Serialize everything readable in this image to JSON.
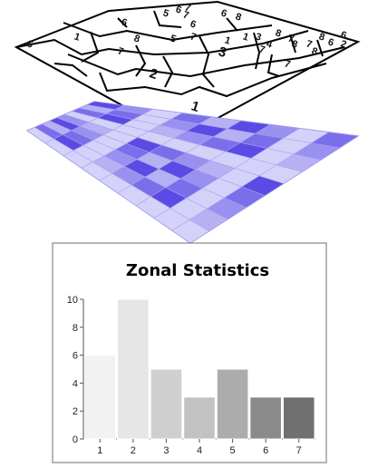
{
  "zone_map": {
    "zone_labels": [
      "1",
      "2",
      "3",
      "5",
      "6",
      "7",
      "7",
      "7",
      "7",
      "8",
      "8",
      "8",
      "8",
      "6",
      "5",
      "1",
      "4",
      "7",
      "8",
      "6",
      "8",
      "6",
      "2",
      "7",
      "1",
      "3",
      "6",
      "6",
      "6",
      "7",
      "7",
      "1"
    ]
  },
  "value_raster": {
    "colors": [
      "#5b4ae3",
      "#7a6eea",
      "#9990ef",
      "#b7b1f4",
      "#d5d2f9"
    ]
  },
  "chart_data": {
    "type": "bar",
    "title": "Zonal Statistics",
    "categories": [
      "1",
      "2",
      "3",
      "4",
      "5",
      "6",
      "7"
    ],
    "values": [
      6,
      10,
      5,
      3,
      5,
      3,
      3
    ],
    "colors": [
      "#f2f2f2",
      "#e6e6e6",
      "#cfcfcf",
      "#c2c2c2",
      "#acacac",
      "#8a8a8a",
      "#707070"
    ],
    "ylim": [
      0,
      10
    ],
    "yticks": [
      "0",
      "2",
      "4",
      "6",
      "8",
      "10"
    ],
    "xlabel": "",
    "ylabel": "",
    "grid": false
  }
}
